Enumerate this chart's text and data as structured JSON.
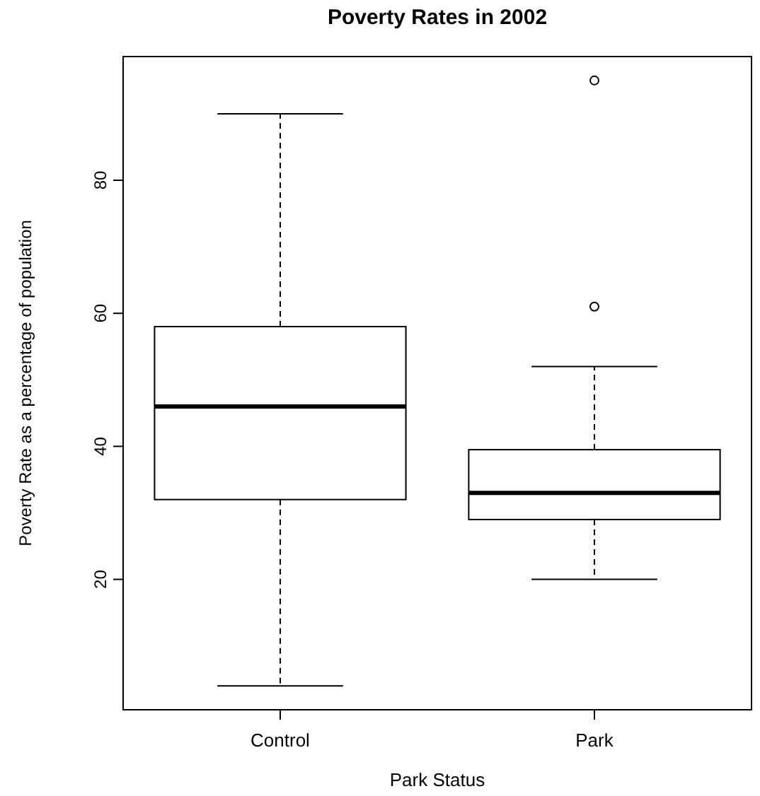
{
  "chart_data": {
    "type": "box",
    "title": "Poverty Rates in 2002",
    "xlabel": "Park Status",
    "ylabel": "Poverty Rate as a percentage of population",
    "categories": [
      "Control",
      "Park"
    ],
    "boxes": [
      {
        "low": 4,
        "q1": 32,
        "median": 46,
        "q3": 58,
        "high": 90
      },
      {
        "low": 20,
        "q1": 29,
        "median": 33,
        "q3": 39.5,
        "high": 52,
        "outliers": [
          61,
          95
        ]
      }
    ],
    "ylim": [
      0.4,
      98.6
    ],
    "yticks": [
      20,
      40,
      60,
      80
    ],
    "grid": false
  }
}
